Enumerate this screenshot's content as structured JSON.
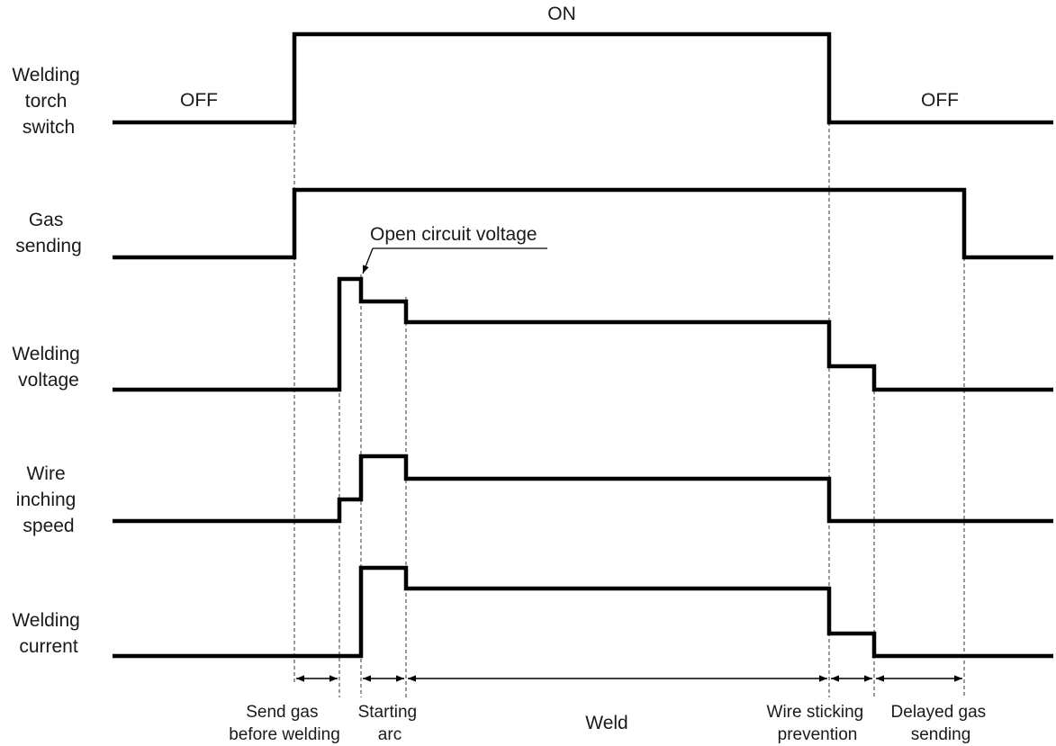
{
  "signals": {
    "torch": [
      "Welding",
      "torch",
      "switch"
    ],
    "gas": [
      "Gas",
      "sending"
    ],
    "voltage": [
      "Welding",
      "voltage"
    ],
    "wire": [
      "Wire",
      "inching",
      "speed"
    ],
    "current": [
      "Welding",
      "current"
    ]
  },
  "states": {
    "on": "ON",
    "off_left": "OFF",
    "off_right": "OFF"
  },
  "callout": "Open circuit voltage",
  "phases": {
    "send_gas": [
      "Send gas",
      "before welding"
    ],
    "starting_arc": [
      "Starting",
      "arc"
    ],
    "weld": "Weld",
    "wire_sticking": [
      "Wire sticking",
      "prevention"
    ],
    "delayed_gas": [
      "Delayed gas",
      "sending"
    ]
  }
}
